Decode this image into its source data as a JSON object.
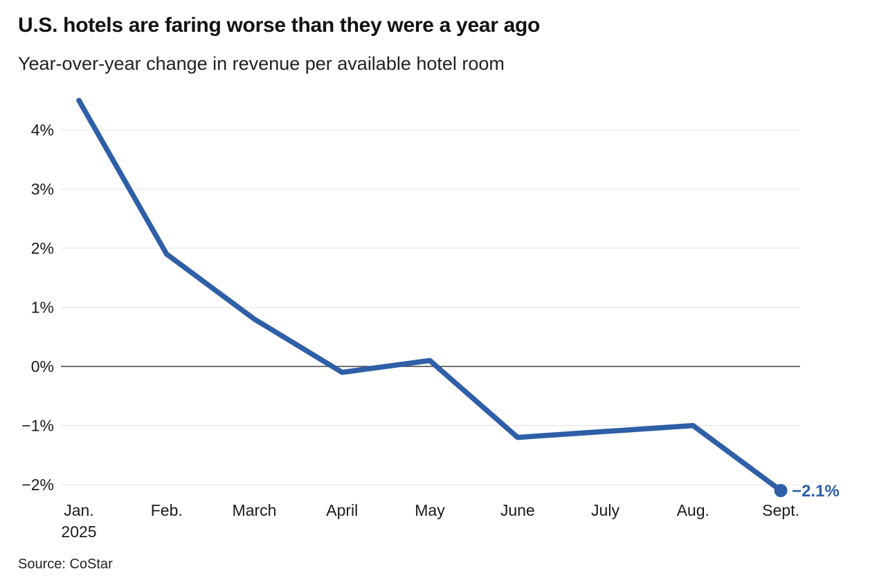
{
  "chart_data": {
    "type": "line",
    "title": "U.S. hotels are faring worse than they were a year ago",
    "subtitle": "Year-over-year change in revenue per available hotel room",
    "source": "Source: CoStar",
    "categories": [
      "Jan.",
      "Feb.",
      "March",
      "April",
      "May",
      "June",
      "July",
      "Aug.",
      "Sept."
    ],
    "first_category_sublabel": "2025",
    "series": [
      {
        "name": "Year-over-year change in revenue per available hotel room",
        "values": [
          4.5,
          1.9,
          0.8,
          -0.1,
          0.1,
          -1.2,
          -1.1,
          -1.0,
          -2.1
        ]
      }
    ],
    "end_label": "−2.1%",
    "y_ticks": [
      4,
      3,
      2,
      1,
      0,
      -1,
      -2
    ],
    "y_tick_labels": [
      "4%",
      "3%",
      "2%",
      "1%",
      "0%",
      "−1%",
      "−2%"
    ],
    "ylim": [
      -2.4,
      4.7
    ],
    "xlabel": "",
    "ylabel": "",
    "grid": true,
    "legend": false,
    "zero_baseline": true,
    "colors": {
      "line": "#2e5fa7",
      "marker": "#2e5fa7",
      "end_label_text": "#2e5fa7",
      "grid": "#e3e3e3",
      "zero_line": "#404040",
      "tick_text": "#1a1a1a",
      "title_text": "#121212",
      "subtitle_text": "#222222",
      "source_text": "#222222"
    }
  }
}
